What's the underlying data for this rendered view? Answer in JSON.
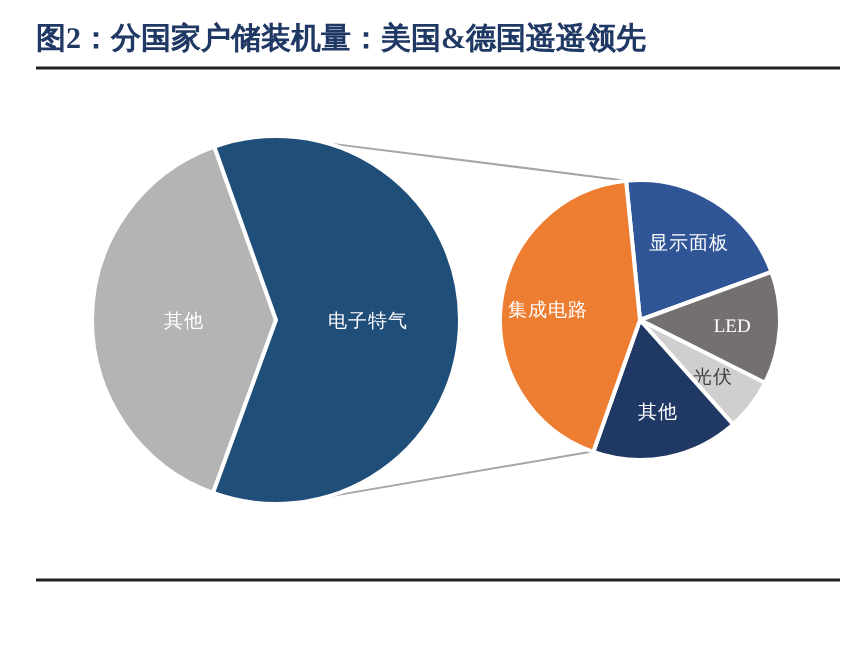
{
  "chart_data": [
    {
      "type": "pie",
      "title": "图2：分国家户储装机量：美国&德国遥遥领先",
      "categories": [
        "其他",
        "电子特气"
      ],
      "values": [
        39,
        61
      ],
      "colors": [
        "#b4b4b4",
        "#1f4e79"
      ]
    },
    {
      "type": "pie",
      "categories": [
        "显示面板",
        "LED",
        "光伏",
        "其他",
        "集成电路"
      ],
      "values": [
        21,
        13,
        6,
        17,
        43
      ],
      "colors": [
        "#2f5597",
        "#757070",
        "#d0cece",
        "#203864",
        "#ed7d31"
      ]
    }
  ]
}
